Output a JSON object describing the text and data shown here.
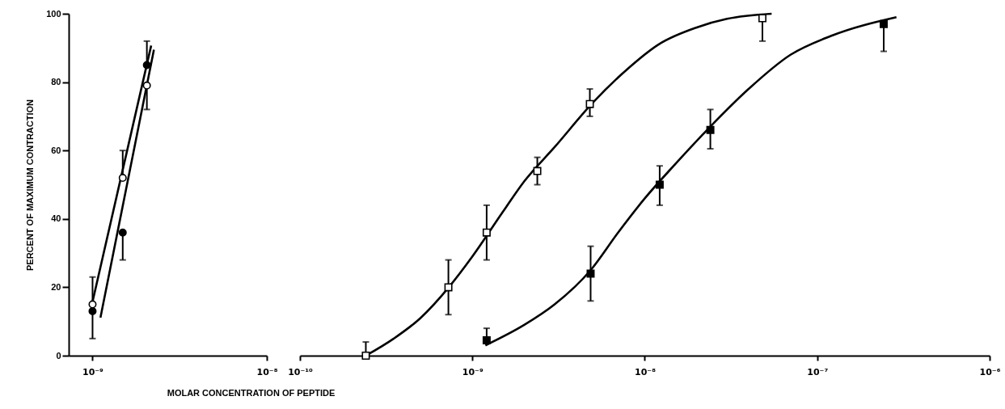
{
  "chart_data": [
    {
      "type": "scatter",
      "ylabel": "PERCENT OF MAXIMUM CONTRACTION",
      "xlabel": "MOLAR CONCENTRATION OF PEPTIDE",
      "log": "x",
      "xlim": [
        7.3e-10,
        1e-08
      ],
      "xticks": [
        {
          "value": 1e-09,
          "label": "10⁻⁹"
        },
        {
          "value": 1e-08,
          "label": "10⁻⁸"
        }
      ],
      "ylim": [
        0,
        100
      ],
      "yticks": [
        0,
        20,
        40,
        60,
        80,
        100
      ],
      "grid": false,
      "series": [
        {
          "type": "line",
          "color": "#000000",
          "marker": "none",
          "x": [
            1e-09,
            2.17e-09
          ],
          "values": [
            15.8,
            90.7
          ]
        },
        {
          "type": "line",
          "color": "#000000",
          "marker": "none",
          "x": [
            1.11e-09,
            2.25e-09
          ],
          "values": [
            11.1,
            89.5
          ]
        },
        {
          "type": "scatter",
          "color": "#ffffff",
          "marker": "circle",
          "x": [
            1e-09,
            1.49e-09,
            2.05e-09
          ],
          "values": [
            15,
            52,
            79
          ],
          "errors": [
            [
              15,
              23
            ],
            [
              52,
              60
            ],
            [
              72,
              79
            ]
          ]
        },
        {
          "type": "scatter",
          "color": "#000000",
          "marker": "circle",
          "x": [
            1e-09,
            1.49e-09,
            2.05e-09
          ],
          "values": [
            13,
            36,
            85
          ],
          "errors": [
            [
              5,
              13
            ],
            [
              28,
              36
            ],
            [
              85,
              92
            ]
          ]
        }
      ]
    },
    {
      "type": "scatter",
      "log": "x",
      "tick_labels": "x",
      "xlim": [
        1e-10,
        1e-06
      ],
      "xticks": [
        {
          "value": 1e-10,
          "label": "10⁻¹⁰"
        },
        {
          "value": 1e-09,
          "label": "10⁻⁹"
        },
        {
          "value": 1e-08,
          "label": "10⁻⁸"
        },
        {
          "value": 1e-07,
          "label": "10⁻⁷"
        },
        {
          "value": 1e-06,
          "label": "10⁻⁶"
        }
      ],
      "ylim": [
        0,
        100
      ],
      "grid": false,
      "series": [
        {
          "type": "line",
          "color": "#000000",
          "marker": "none",
          "x": [
            2.41e-10,
            3.5e-10,
            5e-10,
            7.3e-10,
            1e-09,
            1.5e-09,
            2e-09,
            3e-09,
            5e-09,
            8e-09,
            1.2e-08,
            2e-08,
            3e-08,
            5.44e-08
          ],
          "values": [
            0,
            5,
            11,
            20,
            29,
            42,
            51,
            61,
            74,
            84,
            91,
            96,
            98.5,
            100
          ]
        },
        {
          "type": "line",
          "color": "#000000",
          "marker": "none",
          "x": [
            1.19e-09,
            2e-09,
            3e-09,
            4.85e-09,
            7e-09,
            1e-08,
            1.5e-08,
            2.4e-08,
            4e-08,
            7e-08,
            1.2e-07,
            2.88e-07
          ],
          "values": [
            3,
            9,
            15,
            25,
            36,
            46,
            56,
            67,
            78,
            88,
            93.5,
            99
          ]
        },
        {
          "type": "scatter",
          "color": "#ffffff",
          "marker": "square",
          "x": [
            2.41e-10,
            7.26e-10,
            1.21e-09,
            2.38e-09,
            4.8e-09,
            4.81e-08
          ],
          "values": [
            0,
            20,
            36,
            54,
            73.6,
            98.7
          ],
          "errors": [
            [
              0,
              4
            ],
            [
              12,
              28
            ],
            [
              28,
              44
            ],
            [
              50,
              58
            ],
            [
              70,
              78
            ],
            [
              92,
              98.7
            ]
          ]
        },
        {
          "type": "scatter",
          "color": "#000000",
          "marker": "square",
          "x": [
            1.21e-09,
            4.85e-09,
            1.22e-08,
            2.4e-08,
            2.43e-07
          ],
          "values": [
            4.5,
            24,
            50,
            66,
            97
          ],
          "errors": [
            [
              4.5,
              8
            ],
            [
              16,
              32
            ],
            [
              44,
              55.5
            ],
            [
              60.5,
              72
            ],
            [
              89,
              97
            ]
          ]
        }
      ]
    }
  ]
}
